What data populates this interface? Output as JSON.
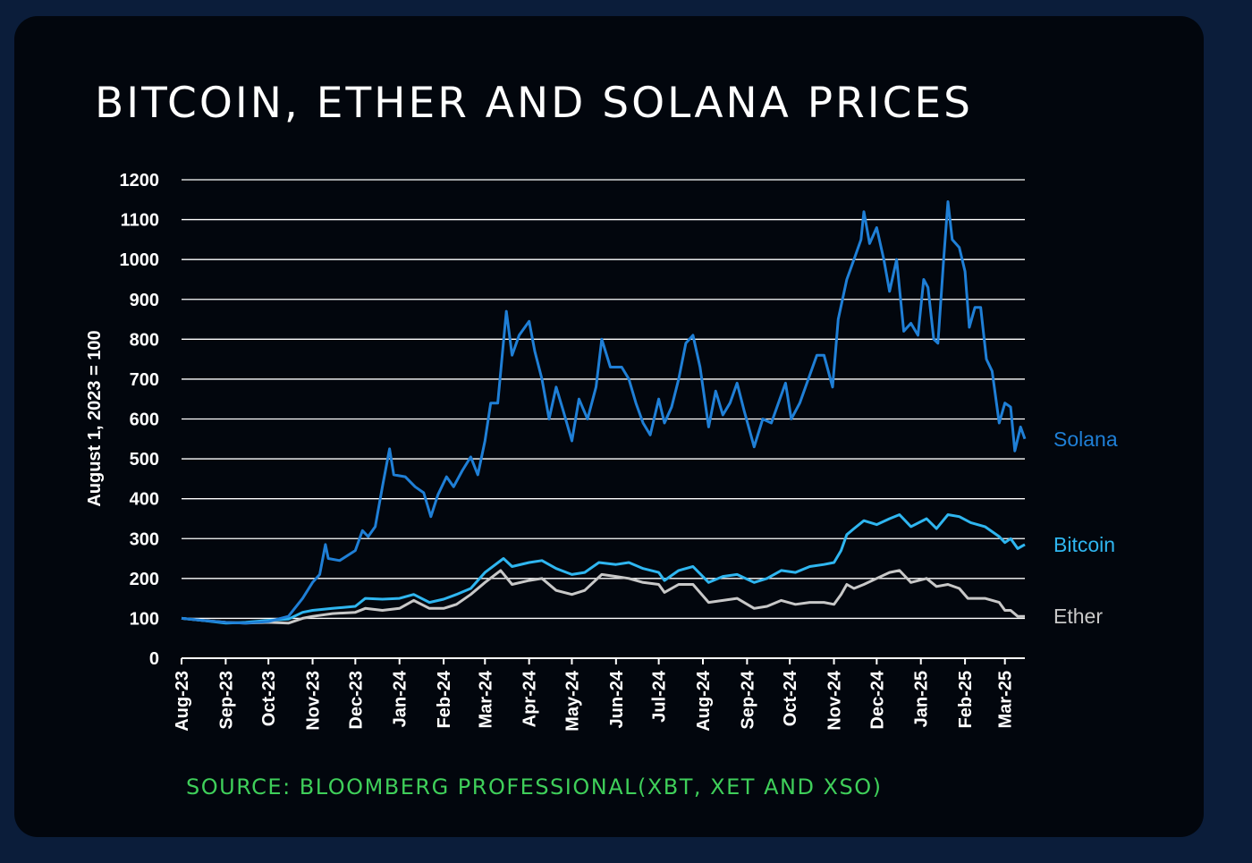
{
  "title": "BITCOIN, ETHER AND SOLANA PRICES",
  "source": "SOURCE: BLOOMBERG PROFESSIONAL(XBT, XET AND XSO)",
  "colors": {
    "background": "#0b1d3a",
    "card": "#02060d",
    "solana": "#1f7fd6",
    "bitcoin": "#2fb6f0",
    "ether": "#c8c8c8",
    "source": "#3fcf5a",
    "grid": "#ffffff"
  },
  "chart_data": {
    "type": "line",
    "title": "BITCOIN, ETHER AND SOLANA PRICES",
    "xlabel": "",
    "ylabel": "August 1, 2023 = 100",
    "ylim": [
      0,
      1200
    ],
    "yticks": [
      0,
      100,
      200,
      300,
      400,
      500,
      600,
      700,
      800,
      900,
      1000,
      1100,
      1200
    ],
    "xticks": [
      "Aug-23",
      "Sep-23",
      "Oct-23",
      "Nov-23",
      "Dec-23",
      "Jan-24",
      "Feb-24",
      "Mar-24",
      "Apr-24",
      "May-24",
      "Jun-24",
      "Jul-24",
      "Aug-24",
      "Sep-24",
      "Oct-24",
      "Nov-24",
      "Dec-24",
      "Jan-25",
      "Feb-25",
      "Mar-25"
    ],
    "grid": true,
    "legend": "end-of-line labels on the right",
    "series": [
      {
        "name": "Solana",
        "color": "#1f7fd6",
        "points": [
          [
            "2023-08-01",
            100
          ],
          [
            "2023-08-15",
            95
          ],
          [
            "2023-09-01",
            90
          ],
          [
            "2023-09-15",
            88
          ],
          [
            "2023-10-01",
            92
          ],
          [
            "2023-10-15",
            105
          ],
          [
            "2023-10-25",
            150
          ],
          [
            "2023-11-01",
            190
          ],
          [
            "2023-11-06",
            210
          ],
          [
            "2023-11-10",
            285
          ],
          [
            "2023-11-12",
            250
          ],
          [
            "2023-11-20",
            245
          ],
          [
            "2023-12-01",
            270
          ],
          [
            "2023-12-06",
            320
          ],
          [
            "2023-12-10",
            305
          ],
          [
            "2023-12-15",
            330
          ],
          [
            "2023-12-20",
            430
          ],
          [
            "2023-12-25",
            525
          ],
          [
            "2023-12-28",
            460
          ],
          [
            "2024-01-05",
            455
          ],
          [
            "2024-01-12",
            430
          ],
          [
            "2024-01-18",
            415
          ],
          [
            "2024-01-23",
            355
          ],
          [
            "2024-01-28",
            410
          ],
          [
            "2024-02-03",
            455
          ],
          [
            "2024-02-08",
            430
          ],
          [
            "2024-02-14",
            470
          ],
          [
            "2024-02-20",
            505
          ],
          [
            "2024-02-25",
            460
          ],
          [
            "2024-03-01",
            545
          ],
          [
            "2024-03-05",
            640
          ],
          [
            "2024-03-10",
            640
          ],
          [
            "2024-03-16",
            870
          ],
          [
            "2024-03-20",
            760
          ],
          [
            "2024-03-25",
            810
          ],
          [
            "2024-04-01",
            845
          ],
          [
            "2024-04-05",
            770
          ],
          [
            "2024-04-10",
            700
          ],
          [
            "2024-04-15",
            600
          ],
          [
            "2024-04-20",
            680
          ],
          [
            "2024-04-25",
            620
          ],
          [
            "2024-05-01",
            545
          ],
          [
            "2024-05-06",
            650
          ],
          [
            "2024-05-12",
            600
          ],
          [
            "2024-05-18",
            680
          ],
          [
            "2024-05-22",
            800
          ],
          [
            "2024-05-28",
            730
          ],
          [
            "2024-06-05",
            730
          ],
          [
            "2024-06-10",
            700
          ],
          [
            "2024-06-15",
            640
          ],
          [
            "2024-06-20",
            590
          ],
          [
            "2024-06-25",
            560
          ],
          [
            "2024-07-01",
            650
          ],
          [
            "2024-07-05",
            590
          ],
          [
            "2024-07-10",
            630
          ],
          [
            "2024-07-15",
            700
          ],
          [
            "2024-07-20",
            790
          ],
          [
            "2024-07-25",
            810
          ],
          [
            "2024-07-30",
            730
          ],
          [
            "2024-08-05",
            580
          ],
          [
            "2024-08-10",
            670
          ],
          [
            "2024-08-15",
            610
          ],
          [
            "2024-08-20",
            640
          ],
          [
            "2024-08-25",
            690
          ],
          [
            "2024-08-30",
            620
          ],
          [
            "2024-09-06",
            530
          ],
          [
            "2024-09-12",
            600
          ],
          [
            "2024-09-18",
            590
          ],
          [
            "2024-09-24",
            650
          ],
          [
            "2024-09-28",
            690
          ],
          [
            "2024-10-02",
            600
          ],
          [
            "2024-10-08",
            640
          ],
          [
            "2024-10-14",
            700
          ],
          [
            "2024-10-20",
            760
          ],
          [
            "2024-10-25",
            760
          ],
          [
            "2024-10-31",
            680
          ],
          [
            "2024-11-04",
            850
          ],
          [
            "2024-11-10",
            950
          ],
          [
            "2024-11-15",
            1000
          ],
          [
            "2024-11-20",
            1050
          ],
          [
            "2024-11-22",
            1120
          ],
          [
            "2024-11-26",
            1040
          ],
          [
            "2024-12-01",
            1080
          ],
          [
            "2024-12-06",
            1000
          ],
          [
            "2024-12-10",
            920
          ],
          [
            "2024-12-15",
            1000
          ],
          [
            "2024-12-20",
            820
          ],
          [
            "2024-12-25",
            840
          ],
          [
            "2024-12-30",
            810
          ],
          [
            "2025-01-03",
            950
          ],
          [
            "2025-01-06",
            930
          ],
          [
            "2025-01-10",
            800
          ],
          [
            "2025-01-13",
            790
          ],
          [
            "2025-01-17",
            1000
          ],
          [
            "2025-01-20",
            1145
          ],
          [
            "2025-01-23",
            1050
          ],
          [
            "2025-01-28",
            1030
          ],
          [
            "2025-02-01",
            970
          ],
          [
            "2025-02-04",
            830
          ],
          [
            "2025-02-08",
            880
          ],
          [
            "2025-02-12",
            880
          ],
          [
            "2025-02-16",
            750
          ],
          [
            "2025-02-20",
            720
          ],
          [
            "2025-02-25",
            590
          ],
          [
            "2025-03-01",
            640
          ],
          [
            "2025-03-05",
            630
          ],
          [
            "2025-03-08",
            520
          ],
          [
            "2025-03-10",
            550
          ],
          [
            "2025-03-12",
            580
          ],
          [
            "2025-03-15",
            550
          ]
        ]
      },
      {
        "name": "Bitcoin",
        "color": "#2fb6f0",
        "points": [
          [
            "2023-08-01",
            100
          ],
          [
            "2023-08-15",
            95
          ],
          [
            "2023-09-01",
            88
          ],
          [
            "2023-09-15",
            90
          ],
          [
            "2023-10-01",
            95
          ],
          [
            "2023-10-15",
            98
          ],
          [
            "2023-10-25",
            115
          ],
          [
            "2023-11-01",
            120
          ],
          [
            "2023-11-15",
            125
          ],
          [
            "2023-12-01",
            130
          ],
          [
            "2023-12-08",
            150
          ],
          [
            "2023-12-20",
            148
          ],
          [
            "2024-01-01",
            150
          ],
          [
            "2024-01-11",
            160
          ],
          [
            "2024-01-22",
            140
          ],
          [
            "2024-02-01",
            148
          ],
          [
            "2024-02-10",
            160
          ],
          [
            "2024-02-20",
            175
          ],
          [
            "2024-03-01",
            215
          ],
          [
            "2024-03-14",
            250
          ],
          [
            "2024-03-20",
            230
          ],
          [
            "2024-04-01",
            240
          ],
          [
            "2024-04-10",
            245
          ],
          [
            "2024-04-20",
            225
          ],
          [
            "2024-05-01",
            210
          ],
          [
            "2024-05-10",
            215
          ],
          [
            "2024-05-20",
            240
          ],
          [
            "2024-06-01",
            235
          ],
          [
            "2024-06-10",
            240
          ],
          [
            "2024-06-20",
            225
          ],
          [
            "2024-07-01",
            215
          ],
          [
            "2024-07-05",
            195
          ],
          [
            "2024-07-15",
            220
          ],
          [
            "2024-07-25",
            230
          ],
          [
            "2024-08-05",
            190
          ],
          [
            "2024-08-15",
            205
          ],
          [
            "2024-08-25",
            210
          ],
          [
            "2024-09-06",
            190
          ],
          [
            "2024-09-15",
            200
          ],
          [
            "2024-09-25",
            220
          ],
          [
            "2024-10-05",
            215
          ],
          [
            "2024-10-15",
            230
          ],
          [
            "2024-10-25",
            235
          ],
          [
            "2024-11-01",
            240
          ],
          [
            "2024-11-06",
            270
          ],
          [
            "2024-11-10",
            310
          ],
          [
            "2024-11-15",
            325
          ],
          [
            "2024-11-22",
            345
          ],
          [
            "2024-12-01",
            335
          ],
          [
            "2024-12-10",
            350
          ],
          [
            "2024-12-17",
            360
          ],
          [
            "2024-12-25",
            330
          ],
          [
            "2025-01-05",
            350
          ],
          [
            "2025-01-12",
            325
          ],
          [
            "2025-01-20",
            360
          ],
          [
            "2025-01-28",
            355
          ],
          [
            "2025-02-05",
            340
          ],
          [
            "2025-02-15",
            330
          ],
          [
            "2025-02-25",
            305
          ],
          [
            "2025-03-01",
            290
          ],
          [
            "2025-03-05",
            300
          ],
          [
            "2025-03-10",
            275
          ],
          [
            "2025-03-15",
            285
          ]
        ]
      },
      {
        "name": "Ether",
        "color": "#c8c8c8",
        "points": [
          [
            "2023-08-01",
            100
          ],
          [
            "2023-08-15",
            95
          ],
          [
            "2023-09-01",
            90
          ],
          [
            "2023-09-15",
            88
          ],
          [
            "2023-10-01",
            90
          ],
          [
            "2023-10-15",
            88
          ],
          [
            "2023-10-25",
            100
          ],
          [
            "2023-11-01",
            105
          ],
          [
            "2023-11-15",
            112
          ],
          [
            "2023-12-01",
            115
          ],
          [
            "2023-12-08",
            125
          ],
          [
            "2023-12-20",
            120
          ],
          [
            "2024-01-01",
            125
          ],
          [
            "2024-01-11",
            145
          ],
          [
            "2024-01-22",
            125
          ],
          [
            "2024-02-01",
            125
          ],
          [
            "2024-02-10",
            135
          ],
          [
            "2024-02-20",
            160
          ],
          [
            "2024-03-01",
            190
          ],
          [
            "2024-03-12",
            220
          ],
          [
            "2024-03-20",
            185
          ],
          [
            "2024-04-01",
            195
          ],
          [
            "2024-04-10",
            200
          ],
          [
            "2024-04-20",
            170
          ],
          [
            "2024-05-01",
            160
          ],
          [
            "2024-05-10",
            170
          ],
          [
            "2024-05-22",
            210
          ],
          [
            "2024-06-01",
            205
          ],
          [
            "2024-06-10",
            200
          ],
          [
            "2024-06-20",
            190
          ],
          [
            "2024-07-01",
            185
          ],
          [
            "2024-07-05",
            165
          ],
          [
            "2024-07-15",
            185
          ],
          [
            "2024-07-25",
            185
          ],
          [
            "2024-08-05",
            140
          ],
          [
            "2024-08-15",
            145
          ],
          [
            "2024-08-25",
            150
          ],
          [
            "2024-09-06",
            125
          ],
          [
            "2024-09-15",
            130
          ],
          [
            "2024-09-25",
            145
          ],
          [
            "2024-10-05",
            135
          ],
          [
            "2024-10-15",
            140
          ],
          [
            "2024-10-25",
            140
          ],
          [
            "2024-11-01",
            135
          ],
          [
            "2024-11-06",
            160
          ],
          [
            "2024-11-10",
            185
          ],
          [
            "2024-11-15",
            175
          ],
          [
            "2024-11-22",
            185
          ],
          [
            "2024-12-01",
            200
          ],
          [
            "2024-12-10",
            215
          ],
          [
            "2024-12-17",
            220
          ],
          [
            "2024-12-25",
            190
          ],
          [
            "2025-01-05",
            200
          ],
          [
            "2025-01-12",
            180
          ],
          [
            "2025-01-20",
            185
          ],
          [
            "2025-01-28",
            175
          ],
          [
            "2025-02-03",
            150
          ],
          [
            "2025-02-15",
            150
          ],
          [
            "2025-02-25",
            140
          ],
          [
            "2025-03-01",
            120
          ],
          [
            "2025-03-05",
            120
          ],
          [
            "2025-03-10",
            105
          ],
          [
            "2025-03-15",
            105
          ]
        ]
      }
    ]
  }
}
